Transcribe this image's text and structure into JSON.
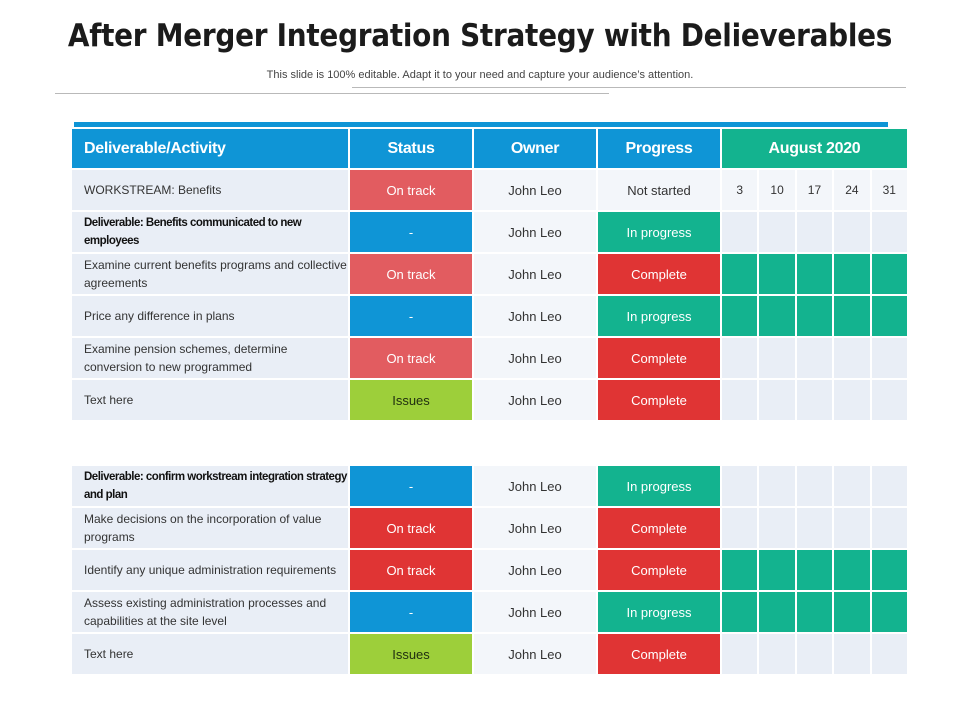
{
  "title": "After Merger Integration Strategy with Delieverables",
  "subtitle": "This slide is 100% editable. Adapt it to your need and capture your audience’s attention.",
  "columns": {
    "activity": "Deliverable/Activity",
    "status": "Status",
    "owner": "Owner",
    "progress": "Progress",
    "month": "August 2020"
  },
  "days": [
    "3",
    "10",
    "17",
    "24",
    "31"
  ],
  "colors": {
    "blue": "#0f95d6",
    "teal": "#13b38f",
    "red": "#e03434",
    "pink": "#e25c60",
    "lime": "#9dcf3a"
  },
  "section1": [
    {
      "activity": "WORKSTREAM: Benefits",
      "bold": false,
      "status": "On track",
      "status_color": "pink",
      "owner": "John Leo",
      "progress": "Not started",
      "progress_color": "none",
      "day_row": true
    },
    {
      "activity": "Deliverable: Benefits communicated to new employees",
      "bold": true,
      "status": "-",
      "status_color": "blue",
      "owner": "John Leo",
      "progress": "In progress",
      "progress_color": "teal",
      "timeline": [
        0,
        0,
        0,
        0,
        0
      ]
    },
    {
      "activity": "Examine current benefits programs and collective agreements",
      "bold": false,
      "status": "On track",
      "status_color": "pink",
      "owner": "John Leo",
      "progress": "Complete",
      "progress_color": "red",
      "timeline": [
        1,
        1,
        1,
        1,
        1
      ]
    },
    {
      "activity": "Price any difference in plans",
      "bold": false,
      "status": "-",
      "status_color": "blue",
      "owner": "John Leo",
      "progress": "In progress",
      "progress_color": "teal",
      "timeline": [
        1,
        1,
        1,
        1,
        1
      ]
    },
    {
      "activity": "Examine pension schemes, determine conversion to new programmed",
      "bold": false,
      "status": "On track",
      "status_color": "pink",
      "owner": "John Leo",
      "progress": "Complete",
      "progress_color": "red",
      "timeline": [
        0,
        0,
        0,
        0,
        0
      ]
    },
    {
      "activity": "Text here",
      "bold": false,
      "status": "Issues",
      "status_color": "lime",
      "owner": "John Leo",
      "progress": "Complete",
      "progress_color": "red",
      "timeline": [
        0,
        0,
        0,
        0,
        0
      ]
    }
  ],
  "section2": [
    {
      "activity": "Deliverable: confirm workstream integration strategy and plan",
      "bold": true,
      "status": "-",
      "status_color": "blue",
      "owner": "John Leo",
      "progress": "In progress",
      "progress_color": "teal",
      "timeline": [
        0,
        0,
        0,
        0,
        0
      ]
    },
    {
      "activity": "Make decisions on the incorporation of value programs",
      "bold": false,
      "status": "On track",
      "status_color": "red",
      "owner": "John Leo",
      "progress": "Complete",
      "progress_color": "red",
      "timeline": [
        0,
        0,
        0,
        0,
        0
      ]
    },
    {
      "activity": "Identify any unique administration requirements",
      "bold": false,
      "status": "On track",
      "status_color": "red",
      "owner": "John Leo",
      "progress": "Complete",
      "progress_color": "red",
      "timeline": [
        1,
        1,
        1,
        1,
        1
      ]
    },
    {
      "activity": "Assess existing administration processes and capabilities at the site level",
      "bold": false,
      "status": "-",
      "status_color": "blue",
      "owner": "John Leo",
      "progress": "In progress",
      "progress_color": "teal",
      "timeline": [
        1,
        1,
        1,
        1,
        1
      ]
    },
    {
      "activity": "Text here",
      "bold": false,
      "status": "Issues",
      "status_color": "lime",
      "owner": "John Leo",
      "progress": "Complete",
      "progress_color": "red",
      "timeline": [
        0,
        0,
        0,
        0,
        0
      ]
    }
  ]
}
